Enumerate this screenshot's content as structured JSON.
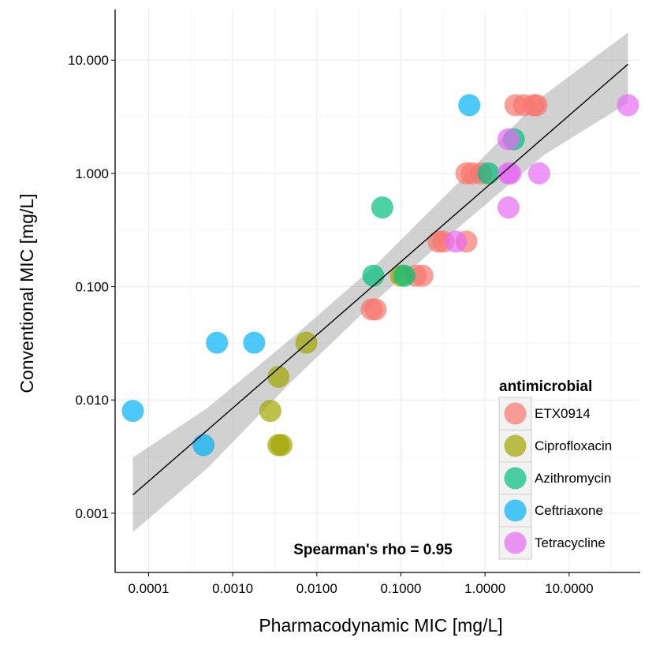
{
  "chart_data": {
    "type": "scatter",
    "title": "",
    "xlabel": "Pharmacodynamic MIC [mg/L]",
    "ylabel": "Conventional MIC [mg/L]",
    "x_scale": "log10",
    "y_scale": "log10",
    "xlim": [
      4e-05,
      70
    ],
    "ylim": [
      0.0003,
      28
    ],
    "x_ticks": [
      "0.0001",
      "0.0010",
      "0.0100",
      "0.1000",
      "1.0000",
      "10.0000"
    ],
    "x_tick_values": [
      0.0001,
      0.001,
      0.01,
      0.1,
      1,
      10
    ],
    "y_ticks": [
      "0.001",
      "0.010",
      "0.100",
      "1.000",
      "10.000"
    ],
    "y_tick_values": [
      0.001,
      0.01,
      0.1,
      1,
      10
    ],
    "grid": true,
    "legend": {
      "title": "antimicrobial",
      "position": "bottom-right"
    },
    "annotation": "Spearman's rho = 0.95",
    "series": [
      {
        "name": "ETX0914",
        "color": "#F8766D",
        "points": [
          [
            0.045,
            0.063
          ],
          [
            0.05,
            0.063
          ],
          [
            0.15,
            0.125
          ],
          [
            0.18,
            0.125
          ],
          [
            0.28,
            0.25
          ],
          [
            0.32,
            0.25
          ],
          [
            0.6,
            0.25
          ],
          [
            0.6,
            1.0
          ],
          [
            0.7,
            1.0
          ],
          [
            0.9,
            1.0
          ],
          [
            2.3,
            4.0
          ],
          [
            2.9,
            4.0
          ],
          [
            3.8,
            4.0
          ],
          [
            4.1,
            4.0
          ]
        ]
      },
      {
        "name": "Ciprofloxacin",
        "color": "#A3A500",
        "points": [
          [
            0.0028,
            0.008
          ],
          [
            0.0035,
            0.004
          ],
          [
            0.0038,
            0.004
          ],
          [
            0.0035,
            0.016
          ],
          [
            0.0075,
            0.032
          ],
          [
            0.1,
            0.125
          ]
        ]
      },
      {
        "name": "Azithromycin",
        "color": "#00BF7D",
        "points": [
          [
            0.047,
            0.125
          ],
          [
            0.06,
            0.5
          ],
          [
            0.11,
            0.125
          ],
          [
            1.1,
            1.0
          ],
          [
            2.2,
            2.0
          ]
        ]
      },
      {
        "name": "Ceftriaxone",
        "color": "#00B0F6",
        "points": [
          [
            6.5e-05,
            0.008
          ],
          [
            0.00045,
            0.004
          ],
          [
            0.00065,
            0.032
          ],
          [
            0.0018,
            0.032
          ],
          [
            0.65,
            4.0
          ]
        ]
      },
      {
        "name": "Tetracycline",
        "color": "#E76BF3",
        "points": [
          [
            0.45,
            0.25
          ],
          [
            1.9,
            0.5
          ],
          [
            1.9,
            1.0
          ],
          [
            1.9,
            2.0
          ],
          [
            2.0,
            1.0
          ],
          [
            4.4,
            1.0
          ],
          [
            50.0,
            4.0
          ]
        ]
      }
    ],
    "regression": {
      "fit": [
        [
          6.5e-05,
          0.00145
        ],
        [
          50.0,
          9.2
        ]
      ],
      "band": [
        [
          6.5e-05,
          0.00068,
          0.0031
        ],
        [
          0.0005,
          0.0025,
          0.0085
        ],
        [
          0.005,
          0.0145,
          0.035
        ],
        [
          0.05,
          0.075,
          0.155
        ],
        [
          0.5,
          0.34,
          0.85
        ],
        [
          5,
          1.45,
          4.9
        ],
        [
          50.0,
          4.2,
          17.5
        ]
      ],
      "band_color": "#999999",
      "line_color": "#000000"
    }
  }
}
